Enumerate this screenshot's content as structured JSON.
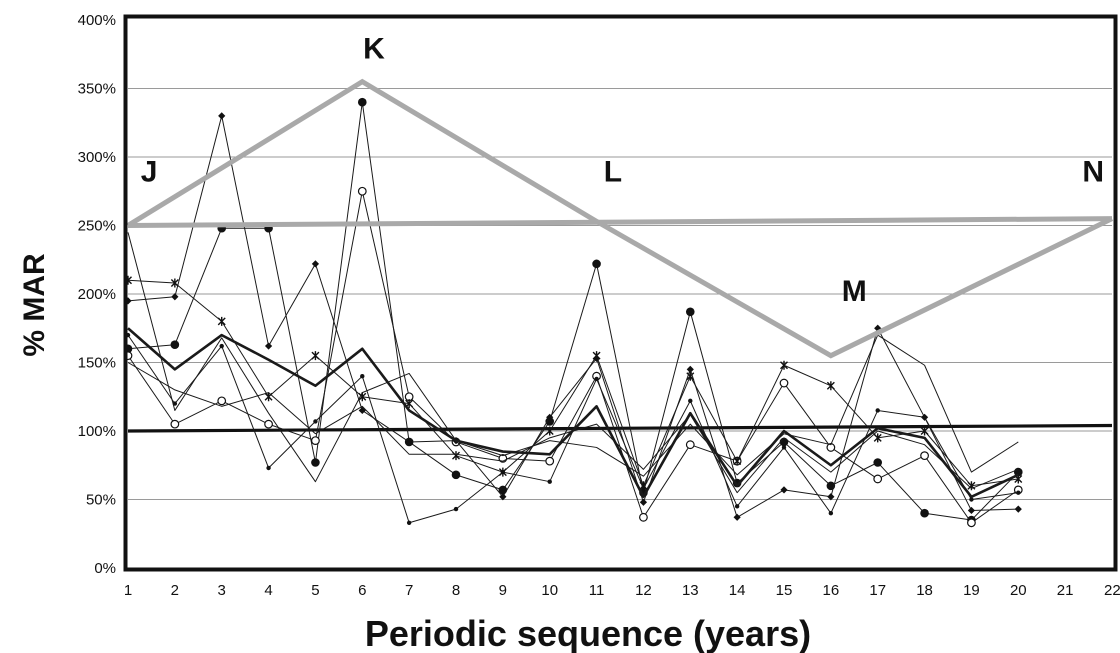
{
  "chart_data": {
    "type": "line",
    "title": "",
    "xlabel": "Periodic sequence (years)",
    "ylabel": "% MAR",
    "xlim": [
      1,
      22
    ],
    "ylim": [
      0,
      400
    ],
    "x_ticks": [
      "1",
      "2",
      "3",
      "4",
      "5",
      "6",
      "7",
      "8",
      "9",
      "10",
      "11",
      "12",
      "13",
      "14",
      "15",
      "16",
      "17",
      "18",
      "19",
      "20",
      "21",
      "22"
    ],
    "y_ticks": [
      {
        "value": 0,
        "label": "0%"
      },
      {
        "value": 50,
        "label": "50%"
      },
      {
        "value": 100,
        "label": "100%"
      },
      {
        "value": 150,
        "label": "150%"
      },
      {
        "value": 200,
        "label": "200%"
      },
      {
        "value": 250,
        "label": "250%"
      },
      {
        "value": 300,
        "label": "300%"
      },
      {
        "value": 350,
        "label": "350%"
      },
      {
        "value": 400,
        "label": "400%"
      }
    ],
    "grid": true,
    "legend": "none",
    "x": [
      1,
      2,
      3,
      4,
      5,
      6,
      7,
      8,
      9,
      10,
      11,
      12,
      13,
      14,
      15,
      16,
      17,
      18,
      19,
      20
    ],
    "series": [
      {
        "marker": "filled-circle",
        "values": [
          160,
          163,
          248,
          248,
          77,
          340,
          92,
          68,
          57,
          107,
          222,
          55,
          187,
          62,
          92,
          60,
          77,
          40,
          35,
          70
        ],
        "width": 1
      },
      {
        "marker": "open-circle",
        "values": [
          155,
          105,
          122,
          105,
          93,
          275,
          125,
          92,
          80,
          78,
          140,
          37,
          90,
          78,
          135,
          88,
          65,
          82,
          33,
          57
        ],
        "width": 1
      },
      {
        "marker": "star",
        "values": [
          210,
          208,
          180,
          125,
          155,
          125,
          120,
          82,
          70,
          100,
          155,
          60,
          140,
          78,
          148,
          133,
          95,
          100,
          60,
          65
        ],
        "width": 1
      },
      {
        "marker": "diamond",
        "values": [
          195,
          198,
          330,
          162,
          222,
          115,
          92,
          93,
          52,
          110,
          153,
          48,
          145,
          37,
          57,
          52,
          175,
          110,
          42,
          43
        ],
        "width": 1
      },
      {
        "marker": "small-dot",
        "values": [
          170,
          120,
          162,
          73,
          107,
          140,
          33,
          43,
          70,
          63,
          138,
          58,
          122,
          45,
          88,
          40,
          115,
          110,
          50,
          55
        ],
        "width": 1
      },
      {
        "marker": "none",
        "values": [
          245,
          115,
          168,
          113,
          63,
          128,
          142,
          93,
          82,
          93,
          88,
          67,
          105,
          68,
          98,
          90,
          170,
          148,
          70,
          92
        ],
        "width": 1
      },
      {
        "marker": "none",
        "values": [
          150,
          130,
          118,
          128,
          98,
          118,
          83,
          83,
          78,
          95,
          105,
          72,
          112,
          55,
          95,
          70,
          100,
          90,
          58,
          72
        ],
        "width": 1
      },
      {
        "marker": "none",
        "values": [
          175,
          145,
          170,
          152,
          133,
          160,
          115,
          93,
          85,
          83,
          118,
          52,
          113,
          60,
          100,
          75,
          102,
          95,
          52,
          68
        ],
        "width": 2.6
      }
    ],
    "reference_line": {
      "from": [
        1,
        100
      ],
      "to": [
        22,
        104
      ]
    },
    "overlay_line": {
      "color": "#a9a9a9",
      "points": [
        [
          1,
          250
        ],
        [
          6,
          355
        ],
        [
          11,
          253
        ],
        [
          16,
          155
        ],
        [
          22,
          255
        ]
      ],
      "closing_line": [
        [
          1,
          250
        ],
        [
          22,
          255
        ]
      ]
    },
    "annotations": [
      {
        "text": "J",
        "x": 1.45,
        "y": 282
      },
      {
        "text": "K",
        "x": 6.25,
        "y": 372
      },
      {
        "text": "L",
        "x": 11.35,
        "y": 282
      },
      {
        "text": "M",
        "x": 16.5,
        "y": 195
      },
      {
        "text": "N",
        "x": 21.6,
        "y": 282
      }
    ]
  }
}
